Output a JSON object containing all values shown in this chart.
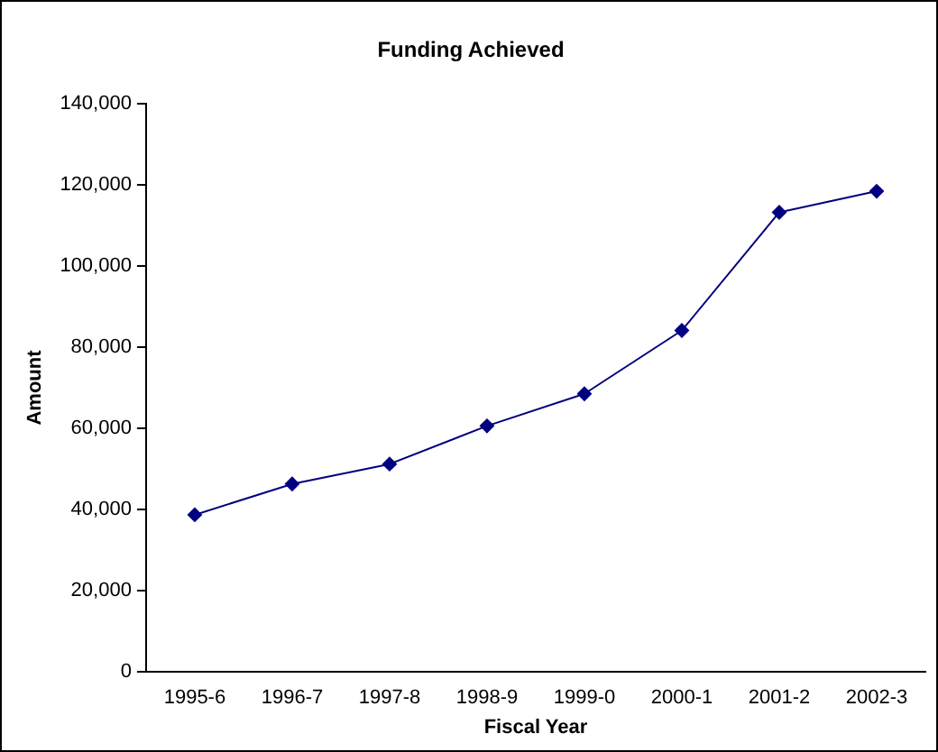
{
  "chart_data": {
    "type": "line",
    "title": "Funding Achieved",
    "xlabel": "Fiscal Year",
    "ylabel": "Amount",
    "categories": [
      "1995-6",
      "1996-7",
      "1997-8",
      "1998-9",
      "1999-0",
      "2000-1",
      "2001-2",
      "2002-3"
    ],
    "series": [
      {
        "color": "#000080",
        "values": [
          38700,
          46300,
          51200,
          60600,
          68500,
          84100,
          113200,
          118400
        ]
      }
    ],
    "ylim": [
      0,
      140000
    ],
    "yticks": [
      0,
      {
        "value": 20000,
        "label": "20,000"
      },
      {
        "value": 40000,
        "label": "40,000"
      },
      {
        "value": 60000,
        "label": "60,000"
      },
      {
        "value": 80000,
        "label": "80,000"
      },
      {
        "value": 100000,
        "label": "100,000"
      },
      {
        "value": 120000,
        "label": "120,000"
      },
      {
        "value": 140000,
        "label": "140,000"
      }
    ],
    "grid": false,
    "legend": false,
    "marker": "diamond",
    "line_style": "solid"
  }
}
